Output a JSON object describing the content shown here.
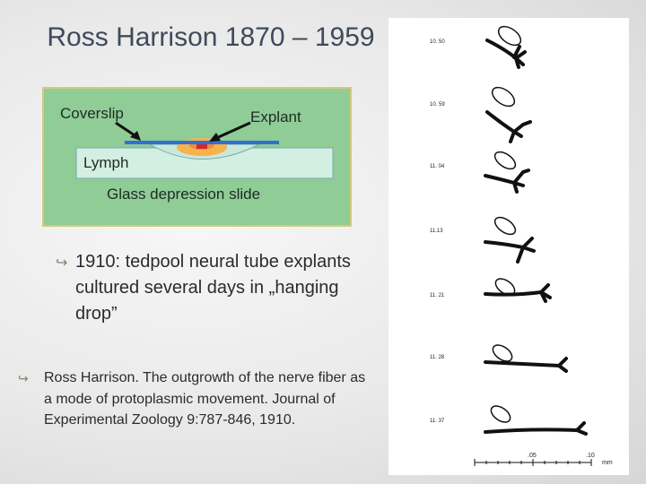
{
  "slide": {
    "title": "Ross Harrison 1870 – 1959"
  },
  "diagram": {
    "labels": {
      "coverslip": "Coverslip",
      "explant": "Explant",
      "lymph": "Lymph",
      "slide": "Glass depression slide"
    },
    "colors": {
      "background": "#8fcc96",
      "coverslip": "#2f6fd6",
      "explant_outer": "#f6b34a",
      "explant_core": "#cf2a2a",
      "lymph_fill": "#d3eee3"
    }
  },
  "bullets": [
    {
      "icon": "curved-arrow-icon",
      "text": "1910: tedpool neural tube explants cultured several days in „hanging drop”"
    },
    {
      "icon": "curved-arrow-icon",
      "text": "Ross Harrison. The outgrowth of the nerve fiber as a mode of protoplasmic movement. Journal of Experimental Zoology 9:787-846, 1910."
    }
  ],
  "figure": {
    "timestamps": [
      "10. 50",
      "10. 59",
      "11. 04",
      "11.13",
      "11. 21",
      "11. 28",
      "11. 37"
    ],
    "scale_labels": [
      ".05",
      ".10",
      "mm"
    ]
  }
}
